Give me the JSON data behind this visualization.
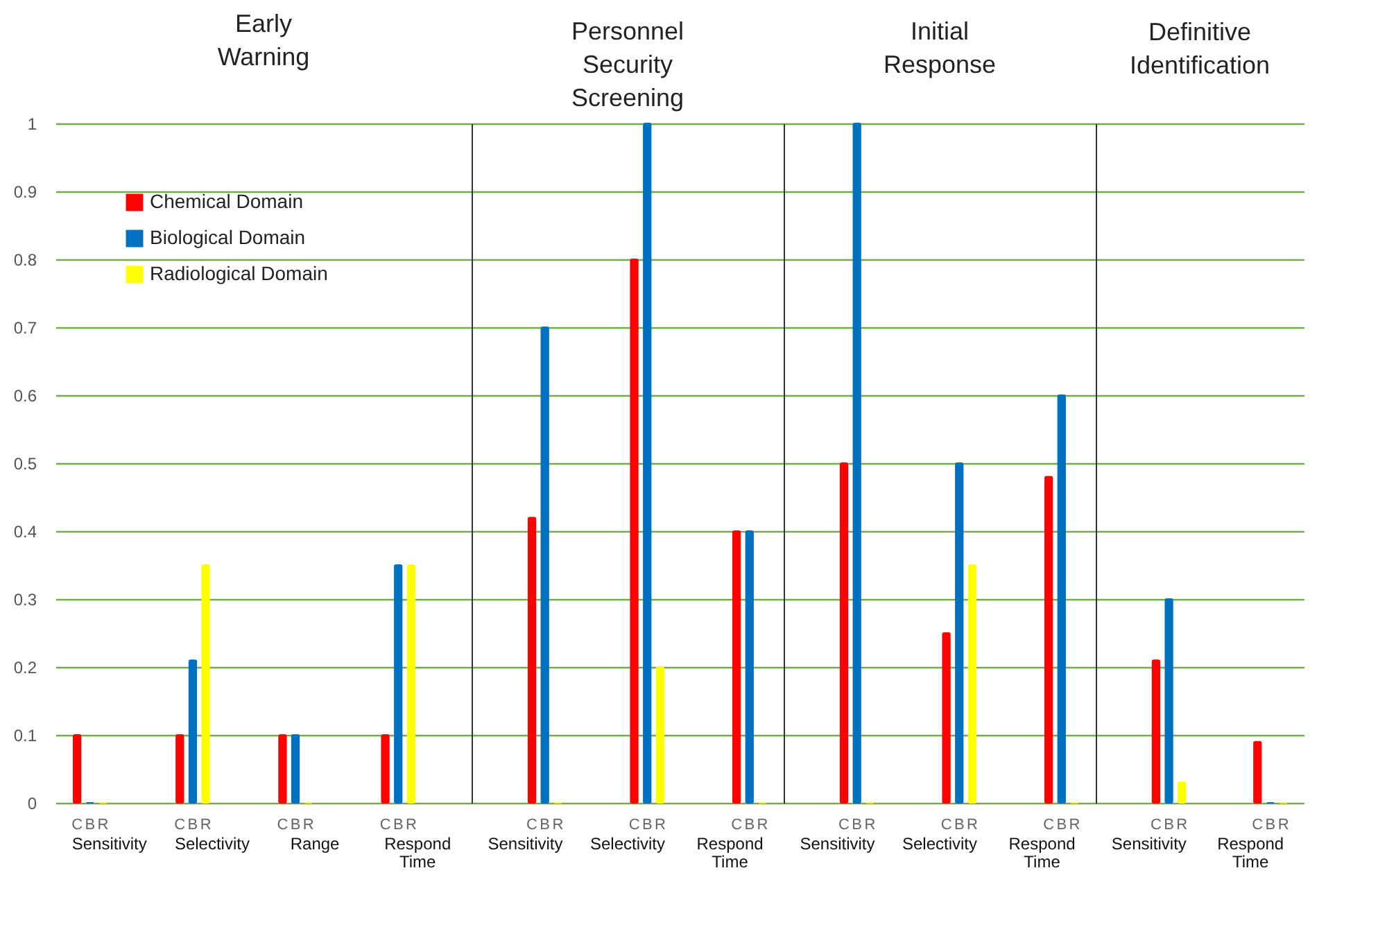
{
  "chart_data": [
    {
      "type": "bar",
      "title": "Early Warning",
      "categories": [
        "Sensitivity",
        "Selectivity",
        "Range",
        "Respond Time"
      ],
      "series": [
        {
          "name": "Chemical Domain",
          "color": "#ff0000",
          "values": [
            0.1,
            0.1,
            0.1,
            0.1
          ]
        },
        {
          "name": "Biological Domain",
          "color": "#0070c0",
          "values": [
            0,
            0.21,
            0.1,
            0.35
          ]
        },
        {
          "name": "Radiological Domain",
          "color": "#ffff00",
          "values": [
            0,
            0.35,
            0,
            0.35
          ]
        }
      ],
      "ylim": [
        0,
        1
      ],
      "yticks": [
        0,
        0.1,
        0.2,
        0.3,
        0.4,
        0.5,
        0.6,
        0.7,
        0.8,
        0.9,
        1
      ],
      "grid": "y",
      "legend": "top left",
      "annotations": [
        "C",
        "B",
        "R"
      ]
    },
    {
      "type": "bar",
      "title": "Personnel Security Screening",
      "categories": [
        "Sensitivity",
        "Selectivity",
        "Respond Time"
      ],
      "series": [
        {
          "color": "#ff0000",
          "values": [
            0.42,
            0.8,
            0.4
          ]
        },
        {
          "color": "#0070c0",
          "values": [
            0.7,
            1,
            0.4
          ]
        },
        {
          "color": "#ffff00",
          "values": [
            0,
            0.2,
            0
          ]
        }
      ],
      "ylim": [
        0,
        1
      ],
      "yticks": [
        0,
        0.1,
        0.2,
        0.3,
        0.4,
        0.5,
        0.6,
        0.7,
        0.8,
        0.9,
        1
      ],
      "grid": "y",
      "tick_labels": "x",
      "annotations": [
        "C",
        "B",
        "R"
      ]
    },
    {
      "type": "bar",
      "title": "Initial Response",
      "categories": [
        "Sensitivity",
        "Selectivity",
        "Respond Time"
      ],
      "series": [
        {
          "color": "#ff0000",
          "values": [
            0.5,
            0.25,
            0.48
          ]
        },
        {
          "color": "#0070c0",
          "values": [
            1,
            0.5,
            0.6
          ]
        },
        {
          "color": "#ffff00",
          "values": [
            0,
            0.35,
            0
          ]
        }
      ],
      "ylim": [
        0,
        1
      ],
      "yticks": [
        0,
        0.1,
        0.2,
        0.3,
        0.4,
        0.5,
        0.6,
        0.7,
        0.8,
        0.9,
        1
      ],
      "grid": "y",
      "tick_labels": "x",
      "annotations": [
        "C",
        "B",
        "R"
      ]
    },
    {
      "type": "bar",
      "title": "Definitive Identification",
      "categories": [
        "Sensitivity",
        "Respond Time"
      ],
      "series": [
        {
          "color": "#ff0000",
          "values": [
            0.21,
            0.09
          ]
        },
        {
          "color": "#0070c0",
          "values": [
            0.3,
            0
          ]
        },
        {
          "color": "#ffff00",
          "values": [
            0.03,
            0
          ]
        }
      ],
      "ylim": [
        0,
        1
      ],
      "yticks": [
        0,
        0.1,
        0.2,
        0.3,
        0.4,
        0.5,
        0.6,
        0.7,
        0.8,
        0.9,
        1
      ],
      "grid": "y",
      "tick_labels": "x",
      "annotations": [
        "C",
        "B",
        "R"
      ]
    }
  ]
}
